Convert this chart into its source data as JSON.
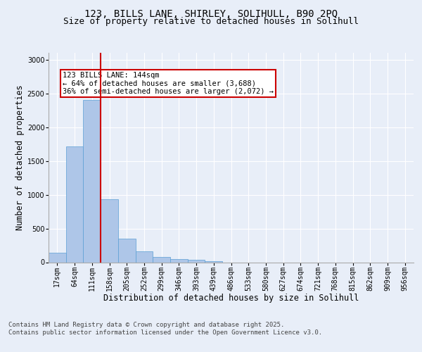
{
  "title_line1": "123, BILLS LANE, SHIRLEY, SOLIHULL, B90 2PQ",
  "title_line2": "Size of property relative to detached houses in Solihull",
  "xlabel": "Distribution of detached houses by size in Solihull",
  "ylabel": "Number of detached properties",
  "categories": [
    "17sqm",
    "64sqm",
    "111sqm",
    "158sqm",
    "205sqm",
    "252sqm",
    "299sqm",
    "346sqm",
    "393sqm",
    "439sqm",
    "486sqm",
    "533sqm",
    "580sqm",
    "627sqm",
    "674sqm",
    "721sqm",
    "768sqm",
    "815sqm",
    "862sqm",
    "909sqm",
    "956sqm"
  ],
  "values": [
    140,
    1710,
    2400,
    930,
    350,
    160,
    80,
    45,
    35,
    20,
    0,
    0,
    0,
    0,
    0,
    0,
    0,
    0,
    0,
    0,
    0
  ],
  "bar_color": "#aec6e8",
  "bar_edge_color": "#5a9fd4",
  "vline_color": "#cc0000",
  "vline_x": 2.5,
  "annotation_text": "123 BILLS LANE: 144sqm\n← 64% of detached houses are smaller (3,688)\n36% of semi-detached houses are larger (2,072) →",
  "annotation_box_color": "#cc0000",
  "annotation_bg": "#ffffff",
  "ylim": [
    0,
    3100
  ],
  "yticks": [
    0,
    500,
    1000,
    1500,
    2000,
    2500,
    3000
  ],
  "footer_text": "Contains HM Land Registry data © Crown copyright and database right 2025.\nContains public sector information licensed under the Open Government Licence v3.0.",
  "bg_color": "#e8eef8",
  "plot_bg": "#e8eef8",
  "grid_color": "#ffffff",
  "title_fontsize": 10,
  "subtitle_fontsize": 9,
  "axis_label_fontsize": 8.5,
  "tick_fontsize": 7,
  "footer_fontsize": 6.5,
  "ann_fontsize": 7.5
}
